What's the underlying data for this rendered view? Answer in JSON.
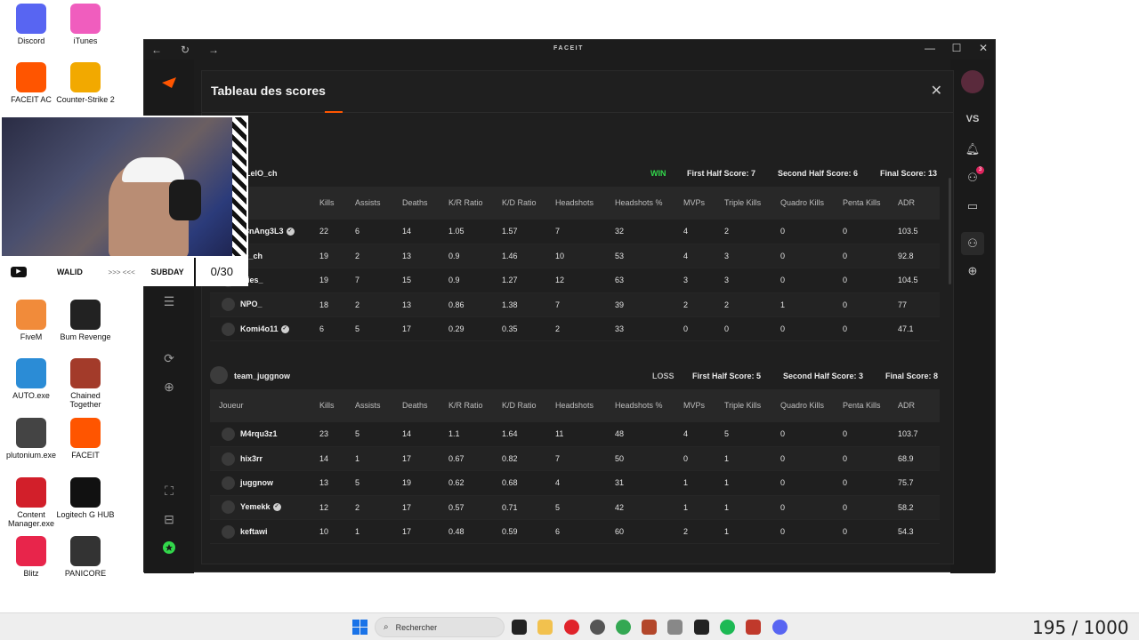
{
  "desktop_icons": [
    {
      "label": "Discord",
      "color": "#5865f2"
    },
    {
      "label": "iTunes",
      "color": "#f05dbe"
    },
    {
      "label": "FACEIT AC",
      "color": "#ff5500"
    },
    {
      "label": "Counter-Strike 2",
      "color": "#f2a900"
    },
    {
      "label": "FiveM",
      "color": "#f18b3a"
    },
    {
      "label": "Bum Revenge",
      "color": "#222222"
    },
    {
      "label": "AUTO.exe",
      "color": "#2b8cd6"
    },
    {
      "label": "Chained Together",
      "color": "#a33b2a"
    },
    {
      "label": "plutonium.exe",
      "color": "#444444"
    },
    {
      "label": "FACEIT",
      "color": "#ff5500"
    },
    {
      "label": "Content Manager.exe",
      "color": "#d21f2a"
    },
    {
      "label": "Logitech G HUB",
      "color": "#111111"
    },
    {
      "label": "Blitz",
      "color": "#e8254b"
    },
    {
      "label": "PANICORE",
      "color": "#333333"
    }
  ],
  "window": {
    "brand": "FACEIT",
    "nav": {
      "back": "←",
      "reload": "↻",
      "forward": "→"
    },
    "controls": {
      "minimize": "—",
      "maximize": "☐",
      "close": "✕"
    }
  },
  "right_rail": {
    "vs_label": "VS",
    "notification_count": "3"
  },
  "modal": {
    "title": "Tableau des scores",
    "close": "✕",
    "columns": [
      "Joueur",
      "Kills",
      "Assists",
      "Deaths",
      "K/R Ratio",
      "K/D Ratio",
      "Headshots",
      "Headshots %",
      "MVPs",
      "Triple Kills",
      "Quadro Kills",
      "Penta Kills",
      "ADR"
    ],
    "team1": {
      "name": "m_LelO_ch",
      "result": "WIN",
      "first_half": "First Half Score: 7",
      "second_half": "Second Half Score: 6",
      "final": "Final Score: 13",
      "players": [
        [
          "ll3nAng3L3",
          "22",
          "6",
          "14",
          "1.05",
          "1.57",
          "7",
          "32",
          "4",
          "2",
          "0",
          "0",
          "103.5"
        ],
        [
          "lO_ch",
          "19",
          "2",
          "13",
          "0.9",
          "1.46",
          "10",
          "53",
          "4",
          "3",
          "0",
          "0",
          "92.8"
        ],
        [
          "ldies_",
          "19",
          "7",
          "15",
          "0.9",
          "1.27",
          "12",
          "63",
          "3",
          "3",
          "0",
          "0",
          "104.5"
        ],
        [
          "NPO_",
          "18",
          "2",
          "13",
          "0.86",
          "1.38",
          "7",
          "39",
          "2",
          "2",
          "1",
          "0",
          "77"
        ],
        [
          "Komi4o11",
          "6",
          "5",
          "17",
          "0.29",
          "0.35",
          "2",
          "33",
          "0",
          "0",
          "0",
          "0",
          "47.1"
        ]
      ],
      "verified": [
        true,
        false,
        false,
        false,
        true
      ]
    },
    "team2": {
      "name": "team_juggnow",
      "result": "LOSS",
      "first_half": "First Half Score: 5",
      "second_half": "Second Half Score: 3",
      "final": "Final Score: 8",
      "players": [
        [
          "M4rqu3z1",
          "23",
          "5",
          "14",
          "1.1",
          "1.64",
          "11",
          "48",
          "4",
          "5",
          "0",
          "0",
          "103.7"
        ],
        [
          "hix3rr",
          "14",
          "1",
          "17",
          "0.67",
          "0.82",
          "7",
          "50",
          "0",
          "1",
          "0",
          "0",
          "68.9"
        ],
        [
          "juggnow",
          "13",
          "5",
          "19",
          "0.62",
          "0.68",
          "4",
          "31",
          "1",
          "1",
          "0",
          "0",
          "75.7"
        ],
        [
          "Yemekk",
          "12",
          "2",
          "17",
          "0.57",
          "0.71",
          "5",
          "42",
          "1",
          "1",
          "0",
          "0",
          "58.2"
        ],
        [
          "keftawi",
          "10",
          "1",
          "17",
          "0.48",
          "0.59",
          "6",
          "60",
          "2",
          "1",
          "0",
          "0",
          "54.3"
        ]
      ],
      "verified": [
        false,
        false,
        false,
        true,
        false
      ]
    }
  },
  "stream_overlay": {
    "player1": "WALID",
    "arrows": ">>> <<<",
    "player2": "SUBDAY",
    "counter": "0/30"
  },
  "taskbar": {
    "search_placeholder": "Rechercher",
    "overlay_text": "195 / 1000"
  },
  "colors": {
    "accent": "#ff5500",
    "win": "#32d74b"
  }
}
